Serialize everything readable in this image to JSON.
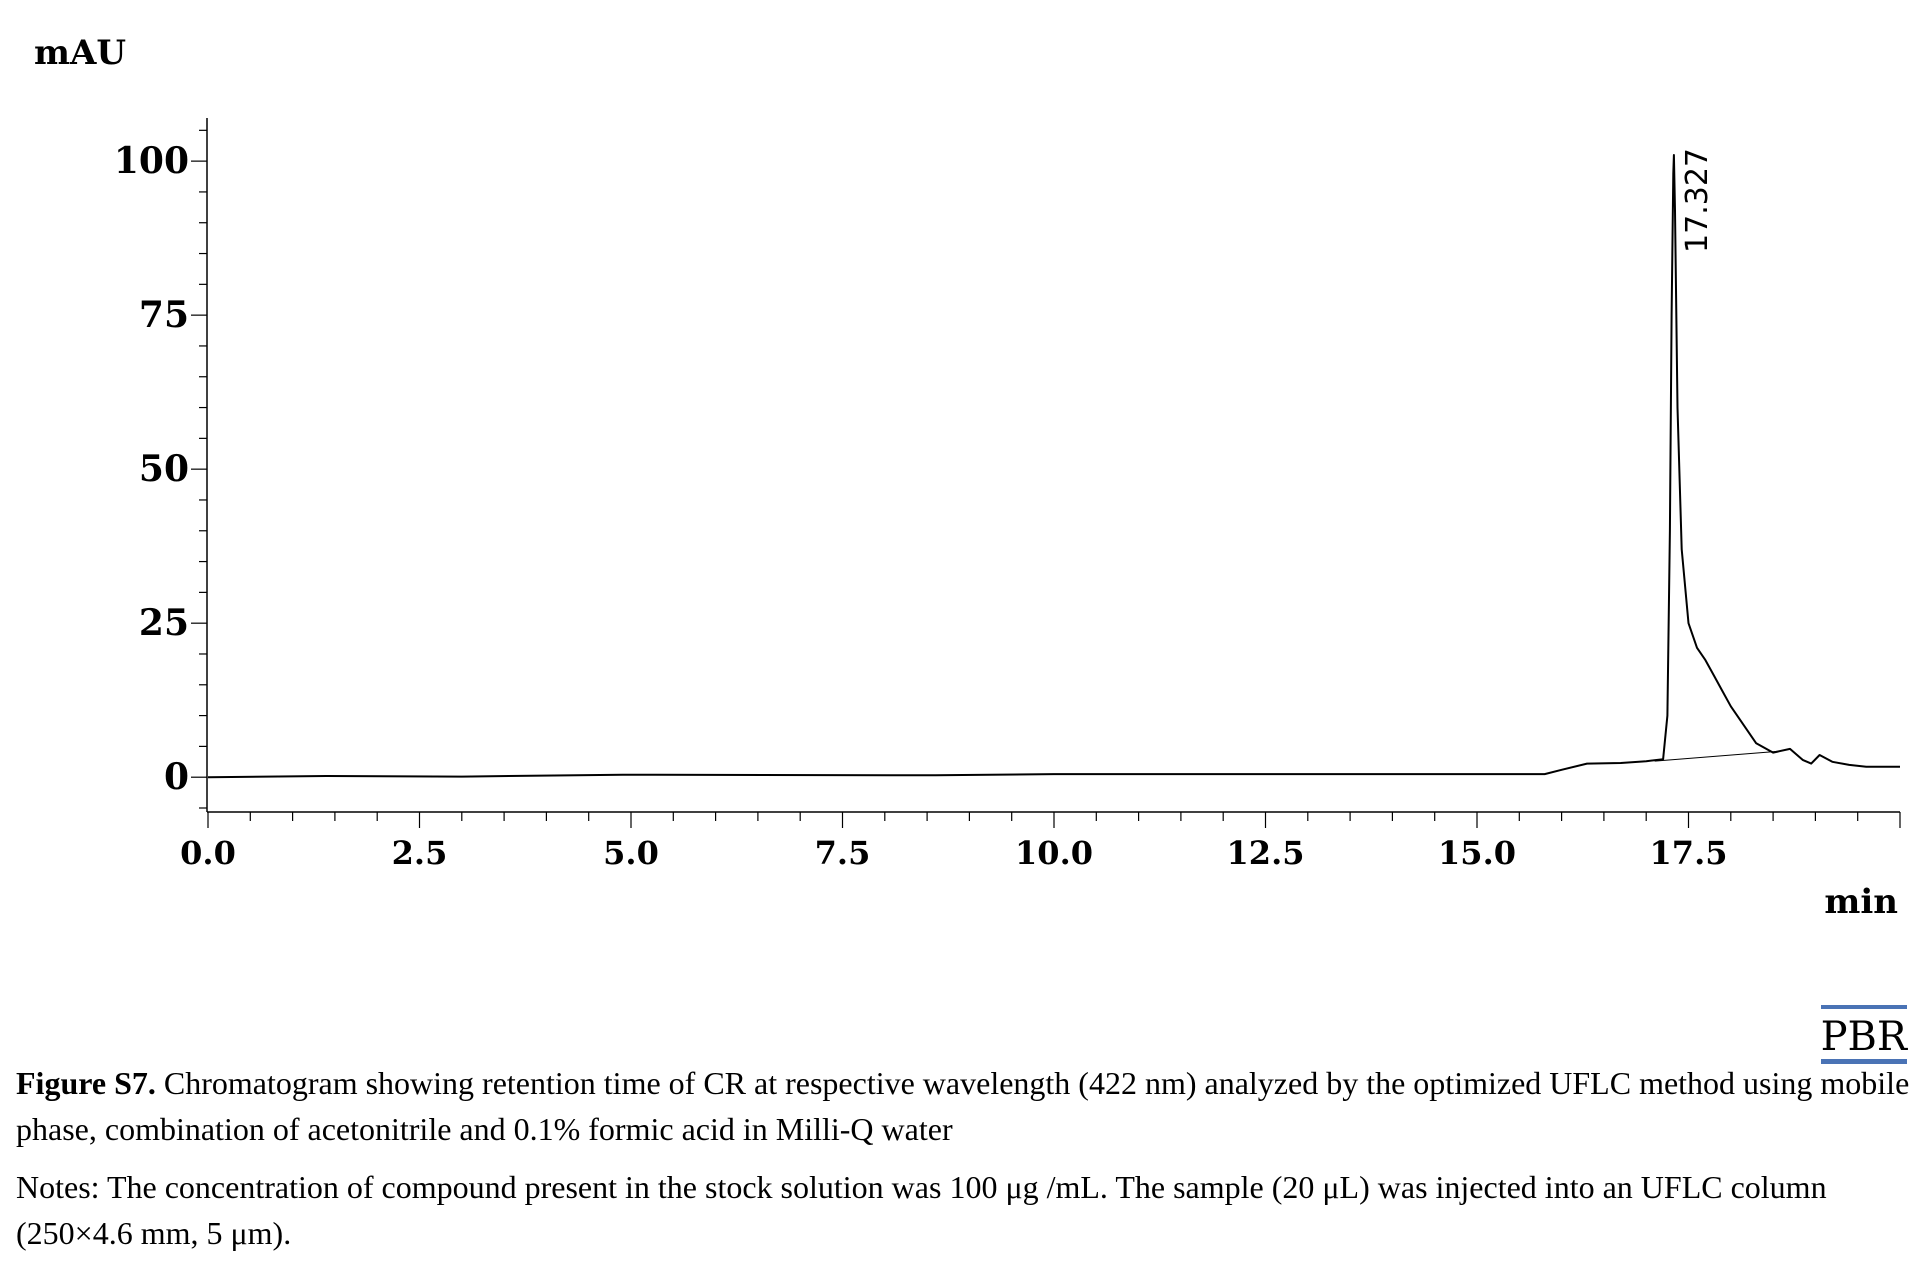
{
  "chart_data": {
    "type": "line",
    "ylabel": "mAU",
    "xlabel": "min",
    "xlim": [
      0.0,
      20.0
    ],
    "ylim": [
      -5,
      107
    ],
    "x_major_ticks": [
      "0.0",
      "2.5",
      "5.0",
      "7.5",
      "10.0",
      "12.5",
      "15.0",
      "17.5"
    ],
    "y_major_ticks": [
      "0",
      "25",
      "50",
      "75",
      "100"
    ],
    "grid": false,
    "legend": "none",
    "line_color": "#000000",
    "series": [
      {
        "x": [
          0.0,
          1.4,
          3.0,
          4.9,
          5.3,
          8.2,
          8.6,
          10.0,
          12.5,
          15.0,
          15.8,
          16.0,
          16.3,
          16.7,
          17.0,
          17.2,
          17.25,
          17.28,
          17.3,
          17.32,
          17.327,
          17.34,
          17.37,
          17.42,
          17.5,
          17.6,
          17.7,
          17.8,
          17.9,
          18.0,
          18.1,
          18.3,
          18.5,
          18.7,
          18.85,
          18.95,
          19.05,
          19.2,
          19.4,
          19.6,
          19.7,
          20.0
        ],
        "y": [
          0.0,
          0.2,
          0.1,
          0.4,
          0.4,
          0.3,
          0.3,
          0.5,
          0.5,
          0.5,
          0.5,
          1.2,
          2.2,
          2.3,
          2.6,
          2.9,
          10,
          40,
          75,
          98,
          101,
          92,
          60,
          37,
          25,
          21,
          19,
          16.5,
          14,
          11.5,
          9.5,
          5.5,
          4.0,
          4.6,
          2.8,
          2.2,
          3.6,
          2.5,
          2.0,
          1.7,
          1.7,
          1.7
        ]
      }
    ],
    "baseline": {
      "x": [
        17.1,
        18.55
      ],
      "y": [
        2.6,
        4.2
      ]
    },
    "annotations": [
      {
        "text": "17.327",
        "x": 17.327,
        "y": 101
      }
    ]
  },
  "logo": {
    "text": "PBR",
    "color": "#4a73b5"
  },
  "caption": {
    "label": "Figure S7.",
    "text": " Chromatogram showing retention time of CR at respective wavelength (422 nm) analyzed by the optimized UFLC method using mobile phase, combination of acetonitrile and 0.1% formic acid in Milli-Q water",
    "notes": "Notes: The concentration of compound present in the stock solution was 100 μg /mL. The sample (20 μL) was injected into an UFLC column (250×4.6 mm, 5 μm)."
  }
}
